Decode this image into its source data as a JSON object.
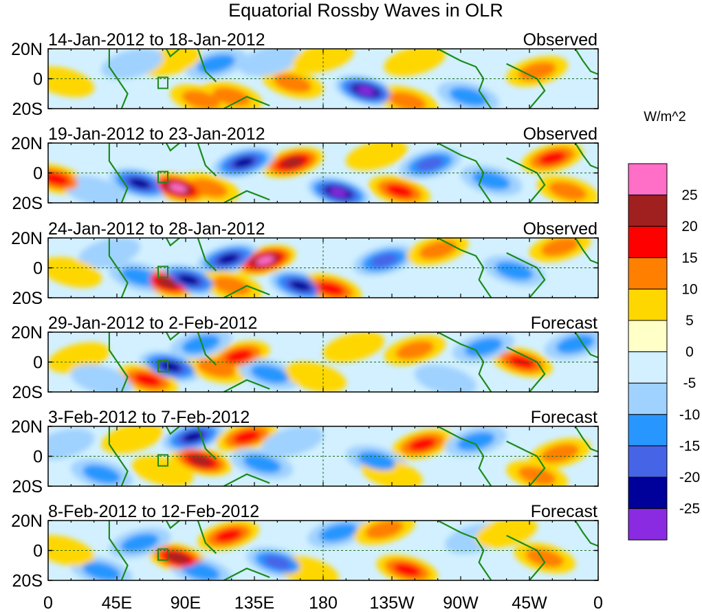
{
  "chart_data": {
    "type": "heatmap",
    "title": "Equatorial Rossby Waves in OLR",
    "units": "W/m^2",
    "x_ticks": [
      "0",
      "45E",
      "90E",
      "135E",
      "180",
      "135W",
      "90W",
      "45W",
      "0"
    ],
    "y_ticks": [
      "20N",
      "0",
      "20S"
    ],
    "x_range": [
      0,
      360
    ],
    "y_range": [
      -20,
      20
    ],
    "colorbar": {
      "labels": [
        "25",
        "20",
        "15",
        "10",
        "5",
        "0",
        "-5",
        "-10",
        "-15",
        "-20",
        "-25"
      ],
      "colors": [
        "#ff6ec7",
        "#a02020",
        "#ff0000",
        "#ff7f00",
        "#ffd700",
        "#ffffc8",
        "#d2f0ff",
        "#a0d2ff",
        "#2896ff",
        "#4664e6",
        "#00009a",
        "#8a2be2"
      ]
    },
    "panels": [
      {
        "period": "14-Jan-2012 to 18-Jan-2012",
        "label": "Observed",
        "anomalies": [
          {
            "lon": 208,
            "lat": -8,
            "value": -30
          },
          {
            "lon": 160,
            "lat": -3,
            "value": 12
          },
          {
            "lon": 120,
            "lat": -12,
            "value": 12
          },
          {
            "lon": 110,
            "lat": 10,
            "value": -10
          },
          {
            "lon": 80,
            "lat": 12,
            "value": 8
          },
          {
            "lon": 10,
            "lat": -2,
            "value": 8
          },
          {
            "lon": 320,
            "lat": 5,
            "value": 10
          },
          {
            "lon": 275,
            "lat": -12,
            "value": -12
          },
          {
            "lon": 240,
            "lat": 12,
            "value": 8
          },
          {
            "lon": 145,
            "lat": 12,
            "value": -8
          },
          {
            "lon": 55,
            "lat": 10,
            "value": -6
          },
          {
            "lon": 180,
            "lat": 14,
            "value": 6
          },
          {
            "lon": 100,
            "lat": -14,
            "value": 10
          },
          {
            "lon": 235,
            "lat": -15,
            "value": 10
          }
        ]
      },
      {
        "period": "19-Jan-2012 to 23-Jan-2012",
        "label": "Observed",
        "anomalies": [
          {
            "lon": 190,
            "lat": -13,
            "value": -28
          },
          {
            "lon": 160,
            "lat": 7,
            "value": 22
          },
          {
            "lon": 85,
            "lat": -10,
            "value": 25
          },
          {
            "lon": 60,
            "lat": -7,
            "value": -22
          },
          {
            "lon": 128,
            "lat": 7,
            "value": -20
          },
          {
            "lon": 230,
            "lat": -12,
            "value": 15
          },
          {
            "lon": 5,
            "lat": -4,
            "value": 15
          },
          {
            "lon": 105,
            "lat": -10,
            "value": 12
          },
          {
            "lon": 330,
            "lat": 10,
            "value": 15
          },
          {
            "lon": 250,
            "lat": 6,
            "value": -15
          },
          {
            "lon": 290,
            "lat": -5,
            "value": -10
          },
          {
            "lon": 30,
            "lat": -12,
            "value": -8
          },
          {
            "lon": 340,
            "lat": -12,
            "value": 10
          },
          {
            "lon": 215,
            "lat": 12,
            "value": 6
          }
        ]
      },
      {
        "period": "24-Jan-2012 to 28-Jan-2012",
        "label": "Observed",
        "anomalies": [
          {
            "lon": 142,
            "lat": 5,
            "value": 28
          },
          {
            "lon": 78,
            "lat": -10,
            "value": 22
          },
          {
            "lon": 92,
            "lat": -8,
            "value": -22
          },
          {
            "lon": 165,
            "lat": -12,
            "value": -20
          },
          {
            "lon": 118,
            "lat": 6,
            "value": -20
          },
          {
            "lon": 60,
            "lat": -6,
            "value": -12
          },
          {
            "lon": 185,
            "lat": -14,
            "value": 15
          },
          {
            "lon": 220,
            "lat": 5,
            "value": -15
          },
          {
            "lon": 255,
            "lat": 12,
            "value": 10
          },
          {
            "lon": 335,
            "lat": 14,
            "value": 12
          },
          {
            "lon": 305,
            "lat": -2,
            "value": -10
          },
          {
            "lon": 40,
            "lat": 10,
            "value": -8
          },
          {
            "lon": 120,
            "lat": -12,
            "value": 10
          },
          {
            "lon": 15,
            "lat": -3,
            "value": 6
          }
        ]
      },
      {
        "period": "29-Jan-2012 to 2-Feb-2012",
        "label": "Forecast",
        "anomalies": [
          {
            "lon": 80,
            "lat": -3,
            "value": -22
          },
          {
            "lon": 125,
            "lat": 4,
            "value": 15
          },
          {
            "lon": 110,
            "lat": -4,
            "value": 14
          },
          {
            "lon": 100,
            "lat": 12,
            "value": -12
          },
          {
            "lon": 145,
            "lat": -8,
            "value": -10
          },
          {
            "lon": 65,
            "lat": -12,
            "value": 15
          },
          {
            "lon": 310,
            "lat": 0,
            "value": 15
          },
          {
            "lon": 240,
            "lat": 8,
            "value": 10
          },
          {
            "lon": 285,
            "lat": 10,
            "value": -10
          },
          {
            "lon": 200,
            "lat": 10,
            "value": 8
          },
          {
            "lon": 175,
            "lat": -10,
            "value": 6
          },
          {
            "lon": 20,
            "lat": 3,
            "value": 6
          },
          {
            "lon": 35,
            "lat": -12,
            "value": -8
          },
          {
            "lon": 345,
            "lat": 12,
            "value": -10
          },
          {
            "lon": 260,
            "lat": -12,
            "value": -8
          }
        ]
      },
      {
        "period": "3-Feb-2012 to 7-Feb-2012",
        "label": "Forecast",
        "anomalies": [
          {
            "lon": 100,
            "lat": -3,
            "value": 22
          },
          {
            "lon": 95,
            "lat": 13,
            "value": -20
          },
          {
            "lon": 130,
            "lat": 13,
            "value": 15
          },
          {
            "lon": 140,
            "lat": -5,
            "value": -12
          },
          {
            "lon": 245,
            "lat": 8,
            "value": 15
          },
          {
            "lon": 215,
            "lat": -3,
            "value": -10
          },
          {
            "lon": 335,
            "lat": 2,
            "value": 12
          },
          {
            "lon": 55,
            "lat": 12,
            "value": 8
          },
          {
            "lon": 35,
            "lat": -12,
            "value": -12
          },
          {
            "lon": 280,
            "lat": 10,
            "value": -10
          },
          {
            "lon": 160,
            "lat": 10,
            "value": -8
          },
          {
            "lon": 320,
            "lat": -13,
            "value": 10
          },
          {
            "lon": 225,
            "lat": -12,
            "value": 8
          },
          {
            "lon": 10,
            "lat": 8,
            "value": -6
          },
          {
            "lon": 75,
            "lat": -10,
            "value": 6
          }
        ]
      },
      {
        "period": "8-Feb-2012 to 12-Feb-2012",
        "label": "Forecast",
        "anomalies": [
          {
            "lon": 85,
            "lat": -5,
            "value": 20
          },
          {
            "lon": 235,
            "lat": -13,
            "value": 15
          },
          {
            "lon": 118,
            "lat": 10,
            "value": 15
          },
          {
            "lon": 150,
            "lat": -8,
            "value": -15
          },
          {
            "lon": 325,
            "lat": -5,
            "value": 10
          },
          {
            "lon": 60,
            "lat": 5,
            "value": -12
          },
          {
            "lon": 35,
            "lat": -14,
            "value": -10
          },
          {
            "lon": 190,
            "lat": 12,
            "value": -10
          },
          {
            "lon": 220,
            "lat": 14,
            "value": 10
          },
          {
            "lon": 280,
            "lat": 8,
            "value": -8
          },
          {
            "lon": 100,
            "lat": -14,
            "value": -10
          },
          {
            "lon": 170,
            "lat": -14,
            "value": 8
          },
          {
            "lon": 10,
            "lat": 0,
            "value": 6
          },
          {
            "lon": 300,
            "lat": 12,
            "value": 6
          }
        ]
      }
    ]
  }
}
